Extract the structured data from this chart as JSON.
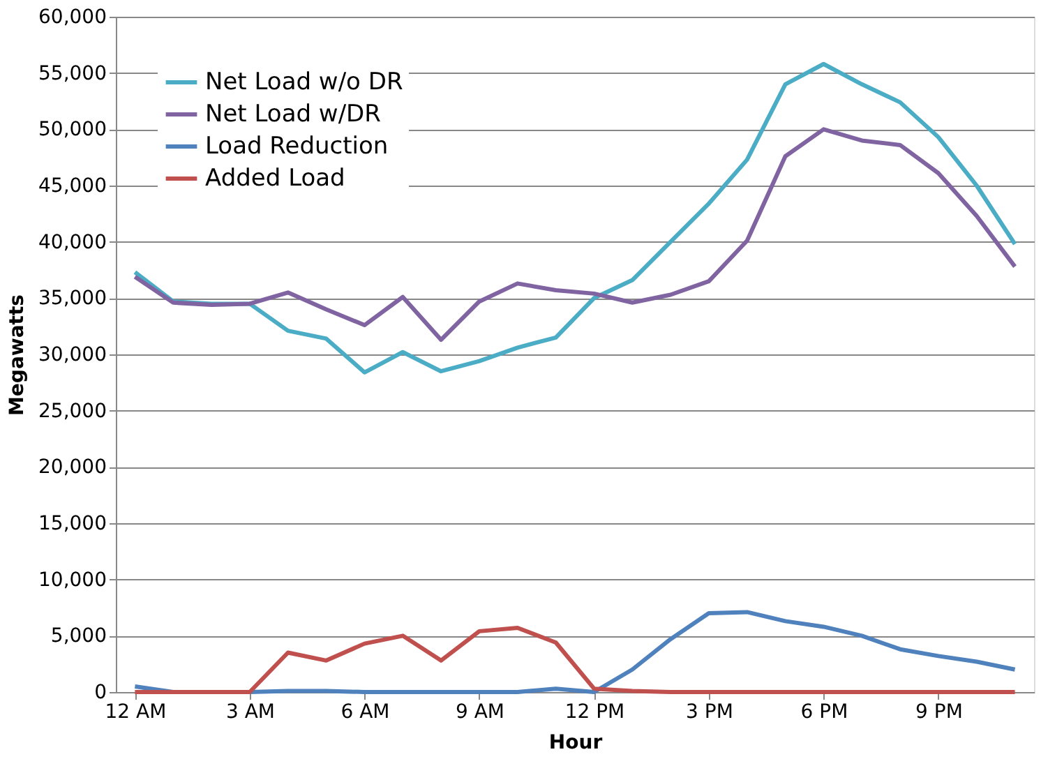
{
  "chart_data": {
    "type": "line",
    "xlabel": "Hour",
    "ylabel": "Megawatts",
    "categories": [
      "12 AM",
      null,
      null,
      "3 AM",
      null,
      null,
      "6 AM",
      null,
      null,
      "9 AM",
      null,
      null,
      "12 PM",
      null,
      null,
      "3 PM",
      null,
      null,
      "6 PM",
      null,
      null,
      "9 PM",
      null,
      null
    ],
    "ylim": [
      0,
      60000
    ],
    "yticks": [
      0,
      {
        "value": 5000,
        "label": "5,000"
      },
      {
        "value": 10000,
        "label": "10,000"
      },
      {
        "value": 15000,
        "label": "15,000"
      },
      {
        "value": 20000,
        "label": "20,000"
      },
      {
        "value": 25000,
        "label": "25,000"
      },
      {
        "value": 30000,
        "label": "30,000"
      },
      {
        "value": 35000,
        "label": "35,000"
      },
      {
        "value": 40000,
        "label": "40,000"
      },
      {
        "value": 45000,
        "label": "45,000"
      },
      {
        "value": 50000,
        "label": "50,000"
      },
      {
        "value": 55000,
        "label": "55,000"
      },
      {
        "value": 60000,
        "label": "60,000"
      }
    ],
    "grid": "y",
    "legend": "top left",
    "marker": "none",
    "line_style": "solid",
    "series": [
      {
        "name": "Net Load w/o DR",
        "color": "#4bacc6",
        "values": [
          37300,
          34700,
          34500,
          34500,
          32100,
          31400,
          28400,
          30200,
          28500,
          29400,
          30600,
          31500,
          35000,
          36600,
          40000,
          43400,
          47300,
          54000,
          55800,
          54000,
          52400,
          49300,
          45000,
          39800
        ]
      },
      {
        "name": "Net Load w/DR",
        "color": "#8064a2",
        "values": [
          36900,
          34600,
          34400,
          34500,
          35500,
          34000,
          32600,
          35100,
          31300,
          34700,
          36300,
          35700,
          35400,
          34600,
          35300,
          36500,
          40100,
          47600,
          50000,
          49000,
          48600,
          46100,
          42300,
          37800
        ]
      },
      {
        "name": "Load Reduction",
        "color": "#4f81bd",
        "values": [
          500,
          0,
          0,
          0,
          100,
          100,
          0,
          0,
          0,
          0,
          0,
          300,
          0,
          2000,
          4700,
          7000,
          7100,
          6300,
          5800,
          5000,
          3800,
          3200,
          2700,
          2000
        ]
      },
      {
        "name": "Added Load",
        "color": "#c0504d",
        "values": [
          0,
          0,
          0,
          0,
          3500,
          2800,
          4300,
          5000,
          2800,
          5400,
          5700,
          4400,
          300,
          100,
          0,
          0,
          0,
          0,
          0,
          0,
          0,
          0,
          0,
          0
        ]
      }
    ]
  }
}
